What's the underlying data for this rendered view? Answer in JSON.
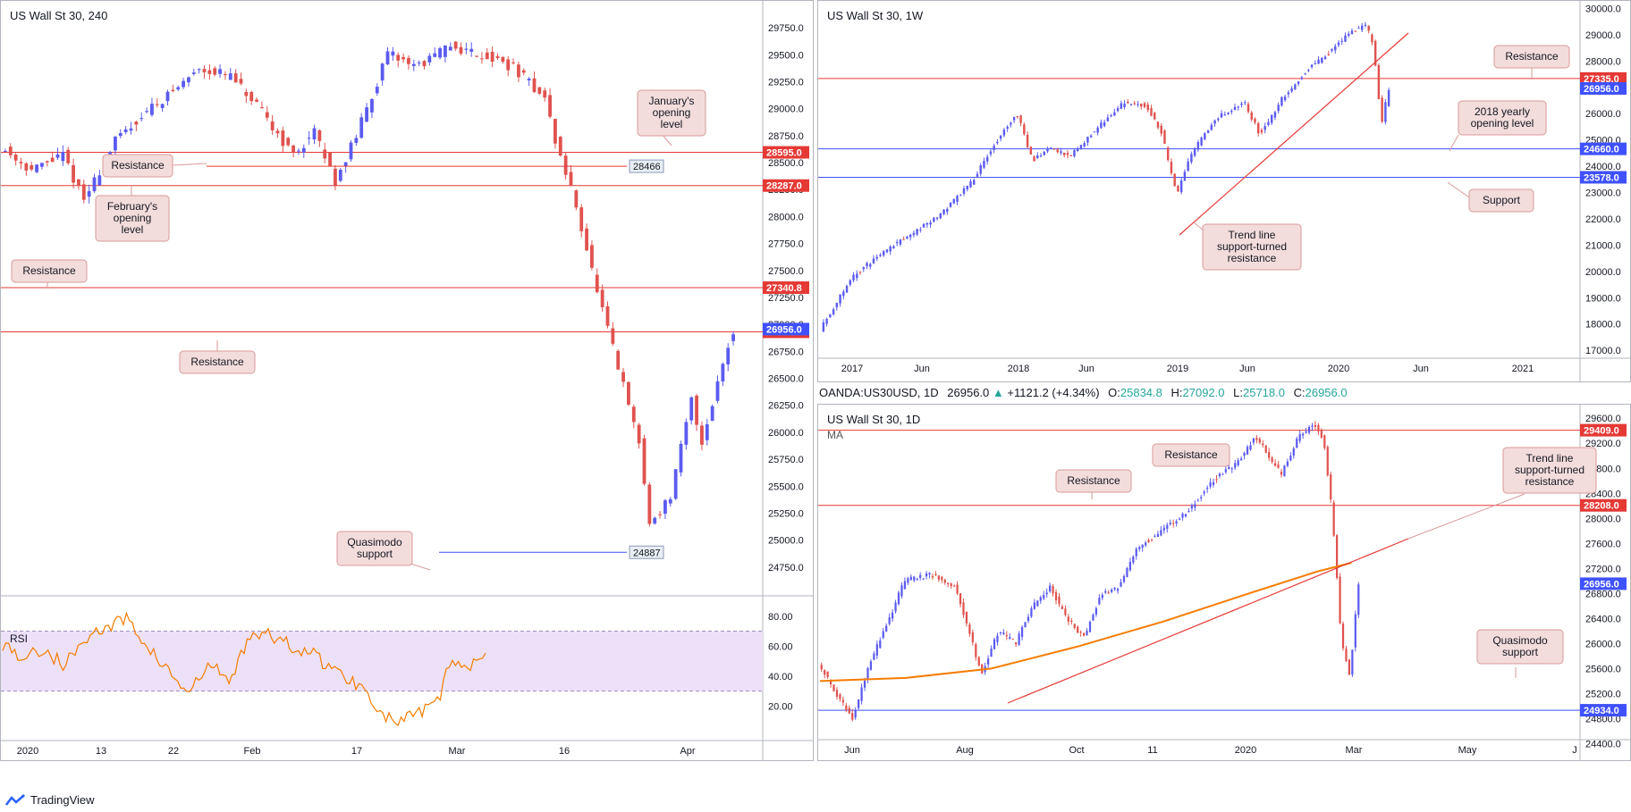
{
  "infobar": {
    "symbol": "OANDA:US30USD, 1D",
    "price": "26956.0",
    "change": "+1121.2 (+4.34%)",
    "o_label": "O:",
    "o_val": "25834.8",
    "h_label": "H:",
    "h_val": "27092.0",
    "l_label": "L:",
    "l_val": "25718.0",
    "c_label": "C:",
    "c_val": "26956.0"
  },
  "footer": {
    "brand": "TradingView"
  },
  "colors": {
    "support": "#3f51ff",
    "resistance": "#e53935",
    "candle_up": "#5b5bf0",
    "candle_down": "#e0524e",
    "ma": "#f57c00",
    "rsi": "#f57c00",
    "rsi_band": "#ede1fa",
    "callout_bg": "#f3dcdc",
    "callout_border": "#d99a9a"
  },
  "chart_data": [
    {
      "id": "h4",
      "type": "candlestick",
      "title": "US Wall St 30, 240",
      "ylim": [
        24500,
        29850
      ],
      "y_ticks": [
        "24750.0",
        "25000.0",
        "25250.0",
        "25500.0",
        "25750.0",
        "26000.0",
        "26250.0",
        "26500.0",
        "26750.0",
        "27000.0",
        "27250.0",
        "27500.0",
        "27750.0",
        "28000.0",
        "28250.0",
        "28500.0",
        "28750.0",
        "29000.0",
        "29250.0",
        "29500.0",
        "29750.0"
      ],
      "x_ticks": [
        "2020",
        "13",
        "22",
        "Feb",
        "17",
        "Mar",
        "16",
        "Apr"
      ],
      "path": [
        [
          0,
          28650
        ],
        [
          0.03,
          28430
        ],
        [
          0.06,
          28570
        ],
        [
          0.08,
          28150
        ],
        [
          0.11,
          28700
        ],
        [
          0.14,
          28980
        ],
        [
          0.17,
          29200
        ],
        [
          0.19,
          29380
        ],
        [
          0.22,
          29300
        ],
        [
          0.25,
          28960
        ],
        [
          0.28,
          28570
        ],
        [
          0.3,
          28780
        ],
        [
          0.32,
          28330
        ],
        [
          0.34,
          28750
        ],
        [
          0.37,
          29500
        ],
        [
          0.4,
          29400
        ],
        [
          0.43,
          29580
        ],
        [
          0.46,
          29500
        ],
        [
          0.49,
          29380
        ],
        [
          0.52,
          29100
        ],
        [
          0.53,
          28700
        ],
        [
          0.55,
          28100
        ],
        [
          0.57,
          27300
        ],
        [
          0.59,
          26600
        ],
        [
          0.61,
          25900
        ],
        [
          0.62,
          25150
        ],
        [
          0.64,
          25400
        ],
        [
          0.66,
          26300
        ],
        [
          0.67,
          25900
        ],
        [
          0.69,
          26650
        ],
        [
          0.7,
          26956
        ]
      ],
      "levels": [
        {
          "value": 28595.0,
          "label": "28595.0",
          "kind": "resistance"
        },
        {
          "value": 28287.0,
          "label": "28287.0",
          "kind": "resistance"
        },
        {
          "value": 27340.8,
          "label": "27340.8",
          "kind": "resistance"
        },
        {
          "value": 26931.0,
          "label": "26931.0",
          "kind": "resistance"
        }
      ],
      "current_price": {
        "value": 26956.0,
        "label": "26956.0"
      },
      "segments": [
        {
          "value": 28466,
          "label": "28466",
          "kind": "resistance"
        },
        {
          "value": 24887,
          "label": "24887",
          "kind": "support"
        }
      ],
      "annotations": [
        "Resistance",
        "January's opening level",
        "February's opening level",
        "Resistance",
        "Resistance",
        "Quasimodo support"
      ],
      "rsi": {
        "label": "RSI",
        "ticks": [
          "80.00",
          "60.00",
          "40.00",
          "20.00"
        ],
        "band": [
          30,
          70
        ],
        "path": [
          [
            0,
            62
          ],
          [
            0.03,
            52
          ],
          [
            0.06,
            58
          ],
          [
            0.09,
            47
          ],
          [
            0.12,
            66
          ],
          [
            0.15,
            72
          ],
          [
            0.18,
            78
          ],
          [
            0.21,
            60
          ],
          [
            0.24,
            43
          ],
          [
            0.27,
            28
          ],
          [
            0.3,
            48
          ],
          [
            0.33,
            36
          ],
          [
            0.36,
            70
          ],
          [
            0.39,
            66
          ],
          [
            0.42,
            60
          ],
          [
            0.45,
            55
          ],
          [
            0.48,
            44
          ],
          [
            0.51,
            36
          ],
          [
            0.53,
            30
          ],
          [
            0.55,
            14
          ],
          [
            0.57,
            9
          ],
          [
            0.59,
            12
          ],
          [
            0.61,
            16
          ],
          [
            0.63,
            22
          ],
          [
            0.65,
            52
          ],
          [
            0.67,
            42
          ],
          [
            0.69,
            55
          ],
          [
            0.7,
            58
          ]
        ]
      }
    },
    {
      "id": "weekly",
      "type": "candlestick",
      "title": "US Wall St 30, 1W",
      "ylim": [
        16700,
        30150
      ],
      "y_ticks": [
        "17000.0",
        "18000.0",
        "19000.0",
        "20000.0",
        "21000.0",
        "22000.0",
        "23000.0",
        "24000.0",
        "25000.0",
        "26000.0",
        "27000.0",
        "28000.0",
        "29000.0",
        "30000.0"
      ],
      "x_ticks": [
        "2017",
        "Jun",
        "2018",
        "Jun",
        "2019",
        "Jun",
        "2020",
        "Jun",
        "2021"
      ],
      "path": [
        [
          0,
          17800
        ],
        [
          0.04,
          19700
        ],
        [
          0.08,
          20700
        ],
        [
          0.12,
          21400
        ],
        [
          0.16,
          22200
        ],
        [
          0.2,
          23400
        ],
        [
          0.24,
          25300
        ],
        [
          0.26,
          26000
        ],
        [
          0.28,
          24200
        ],
        [
          0.3,
          24700
        ],
        [
          0.33,
          24400
        ],
        [
          0.36,
          25300
        ],
        [
          0.4,
          26400
        ],
        [
          0.43,
          26300
        ],
        [
          0.45,
          25300
        ],
        [
          0.47,
          22900
        ],
        [
          0.49,
          24500
        ],
        [
          0.52,
          25800
        ],
        [
          0.56,
          26400
        ],
        [
          0.58,
          25200
        ],
        [
          0.61,
          26600
        ],
        [
          0.64,
          27600
        ],
        [
          0.67,
          28300
        ],
        [
          0.7,
          29100
        ],
        [
          0.72,
          29400
        ],
        [
          0.73,
          28500
        ],
        [
          0.74,
          25600
        ],
        [
          0.75,
          26956
        ]
      ],
      "levels": [
        {
          "value": 27335.0,
          "label": "27335.0",
          "kind": "resistance"
        },
        {
          "value": 24660.0,
          "label": "24660.0",
          "kind": "support"
        },
        {
          "value": 23578.0,
          "label": "23578.0",
          "kind": "support"
        }
      ],
      "current_price": {
        "value": 26956.0,
        "label": "26956.0"
      },
      "annotations": [
        "Resistance",
        "2018 yearly opening level",
        "Support",
        "Trend line support-turned resistance"
      ]
    },
    {
      "id": "daily",
      "type": "candlestick",
      "title": "US Wall St 30, 1D",
      "indicator": "MA",
      "ylim": [
        24250,
        29760
      ],
      "y_ticks": [
        "24400.0",
        "24800.0",
        "25200.0",
        "25600.0",
        "26000.0",
        "26400.0",
        "26800.0",
        "27200.0",
        "27600.0",
        "28000.0",
        "28400.0",
        "28800.0",
        "29200.0",
        "29600.0"
      ],
      "x_ticks": [
        "Jun",
        "Aug",
        "Oct",
        "11",
        "2020",
        "Mar",
        "May",
        "J"
      ],
      "path": [
        [
          0,
          25700
        ],
        [
          0.02,
          25200
        ],
        [
          0.04,
          24800
        ],
        [
          0.06,
          25700
        ],
        [
          0.08,
          26300
        ],
        [
          0.1,
          27000
        ],
        [
          0.13,
          27100
        ],
        [
          0.16,
          26900
        ],
        [
          0.18,
          26000
        ],
        [
          0.19,
          25500
        ],
        [
          0.21,
          26200
        ],
        [
          0.23,
          26000
        ],
        [
          0.25,
          26600
        ],
        [
          0.27,
          26900
        ],
        [
          0.29,
          26400
        ],
        [
          0.31,
          26100
        ],
        [
          0.33,
          26800
        ],
        [
          0.35,
          26900
        ],
        [
          0.37,
          27500
        ],
        [
          0.4,
          27800
        ],
        [
          0.43,
          28100
        ],
        [
          0.46,
          28600
        ],
        [
          0.49,
          28900
        ],
        [
          0.51,
          29300
        ],
        [
          0.52,
          29100
        ],
        [
          0.54,
          28700
        ],
        [
          0.56,
          29300
        ],
        [
          0.58,
          29500
        ],
        [
          0.59,
          29200
        ],
        [
          0.6,
          28000
        ],
        [
          0.61,
          26000
        ],
        [
          0.62,
          25500
        ],
        [
          0.63,
          26956
        ]
      ],
      "levels": [
        {
          "value": 29409.0,
          "label": "29409.0",
          "kind": "resistance"
        },
        {
          "value": 28208.0,
          "label": "28208.0",
          "kind": "resistance"
        },
        {
          "value": 24934.0,
          "label": "24934.0",
          "kind": "support"
        }
      ],
      "current_price": {
        "value": 26956.0,
        "label": "26956.0"
      },
      "ma_path": [
        [
          0,
          25400
        ],
        [
          0.1,
          25450
        ],
        [
          0.2,
          25600
        ],
        [
          0.3,
          25950
        ],
        [
          0.4,
          26350
        ],
        [
          0.5,
          26800
        ],
        [
          0.58,
          27150
        ],
        [
          0.62,
          27290
        ]
      ],
      "annotations": [
        "Resistance",
        "Resistance",
        "Trend line support-turned resistance",
        "Quasimodo support"
      ]
    }
  ],
  "callout_text": {
    "h4": {
      "r1": "Resistance",
      "jan": [
        "January's",
        "opening",
        "level"
      ],
      "feb": [
        "February's",
        "opening",
        "level"
      ],
      "r2": "Resistance",
      "r3": "Resistance",
      "qm": [
        "Quasimodo",
        "support"
      ]
    },
    "weekly": {
      "res": "Resistance",
      "yo": [
        "2018 yearly",
        "opening level"
      ],
      "sup": "Support",
      "tl": [
        "Trend line",
        "support-turned",
        "resistance"
      ]
    },
    "daily": {
      "r1": "Resistance",
      "r2": "Resistance",
      "tl": [
        "Trend line",
        "support-turned",
        "resistance"
      ],
      "qm": [
        "Quasimodo",
        "support"
      ]
    }
  }
}
